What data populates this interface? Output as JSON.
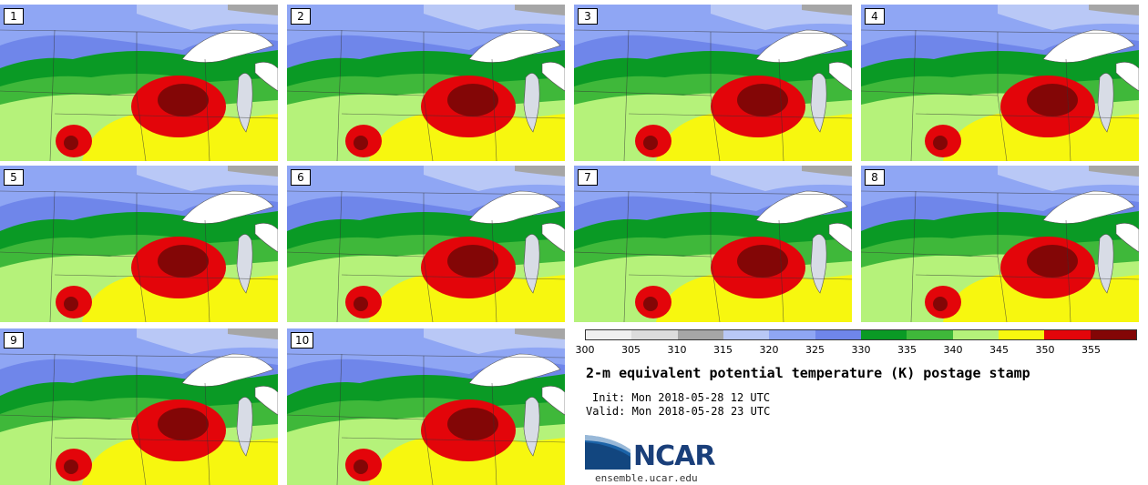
{
  "panels": [
    {
      "label": "1"
    },
    {
      "label": "2"
    },
    {
      "label": "3"
    },
    {
      "label": "4"
    },
    {
      "label": "5"
    },
    {
      "label": "6"
    },
    {
      "label": "7"
    },
    {
      "label": "8"
    },
    {
      "label": "9"
    },
    {
      "label": "10"
    }
  ],
  "legend": {
    "ticks": [
      "300",
      "305",
      "310",
      "315",
      "320",
      "325",
      "330",
      "335",
      "340",
      "345",
      "350",
      "355"
    ],
    "colors": [
      "#efefef",
      "#dcdcdc",
      "#a6a6a6",
      "#b9c8f6",
      "#8fa6f4",
      "#6f86ea",
      "#0a9a25",
      "#3fb83a",
      "#b5f27a",
      "#f7f70f",
      "#e3050a",
      "#830606"
    ]
  },
  "title": "2-m equivalent potential temperature (K) postage stamp",
  "init": "Init: Mon 2018-05-28 12 UTC",
  "valid": "Valid: Mon 2018-05-28 23 UTC",
  "logo": {
    "text": "NCAR",
    "site": "ensemble.ucar.edu"
  }
}
